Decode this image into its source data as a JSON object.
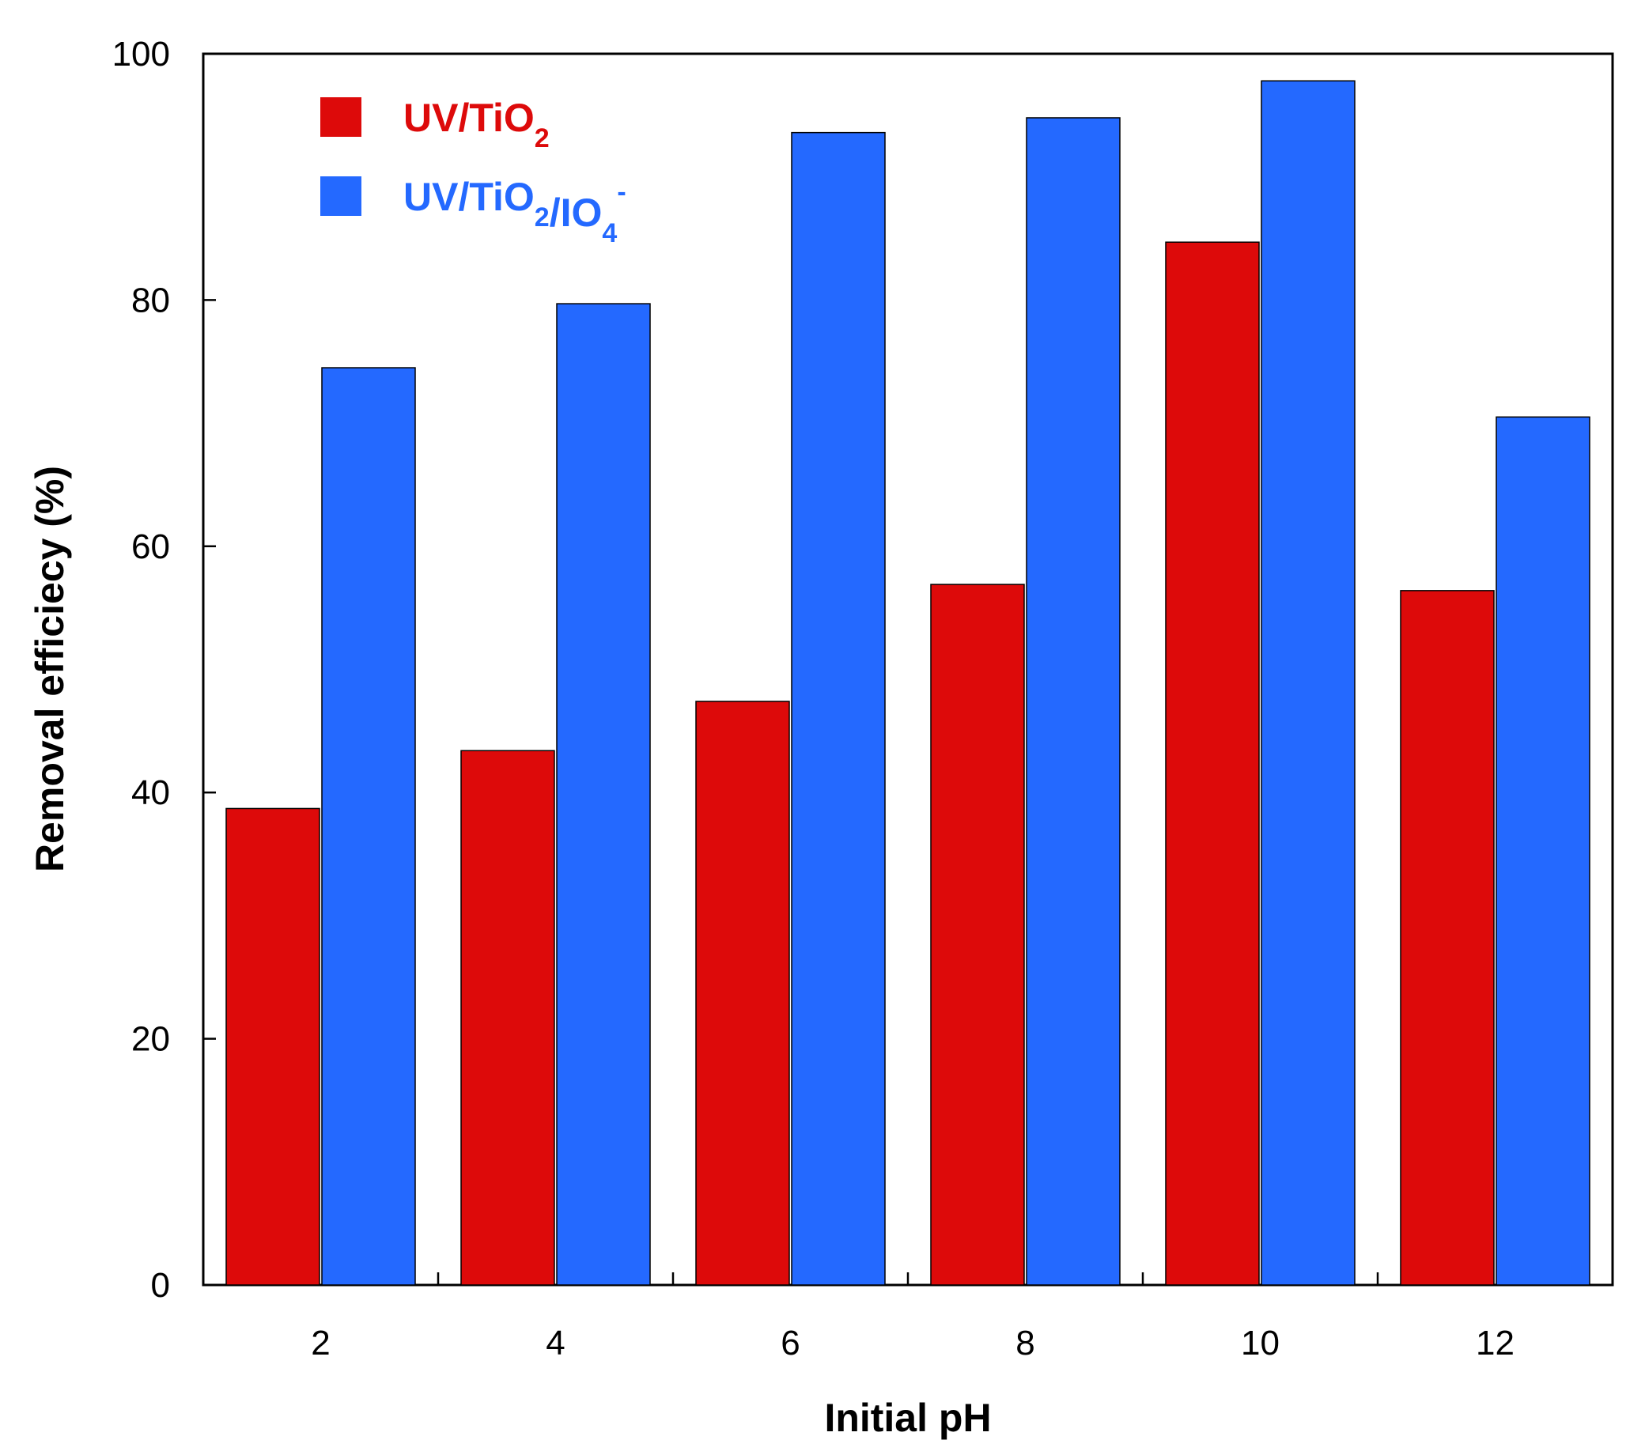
{
  "chart_data": {
    "type": "bar",
    "title": "",
    "xlabel": "Initial pH",
    "ylabel": "Removal efficiecy (%)",
    "ylim": [
      0,
      100
    ],
    "yticks": [
      0,
      20,
      40,
      60,
      80,
      100
    ],
    "categories": [
      "2",
      "4",
      "6",
      "8",
      "10",
      "12"
    ],
    "legend_position": "top-left",
    "series": [
      {
        "name": "UV/TiO2",
        "label_parts": [
          {
            "text": "UV/TiO",
            "sub": "2",
            "sup": ""
          }
        ],
        "color": "#dd0a0a",
        "values": [
          38.7,
          43.4,
          47.4,
          56.9,
          84.7,
          56.4
        ]
      },
      {
        "name": "UV/TiO2/IO4-",
        "label_parts": [
          {
            "text": "UV/TiO",
            "sub": "2",
            "sup": ""
          },
          {
            "text": "/IO",
            "sub": "4",
            "sup": "-"
          }
        ],
        "color": "#2469ff",
        "values": [
          74.5,
          79.7,
          93.6,
          94.8,
          97.8,
          70.5
        ]
      }
    ]
  }
}
